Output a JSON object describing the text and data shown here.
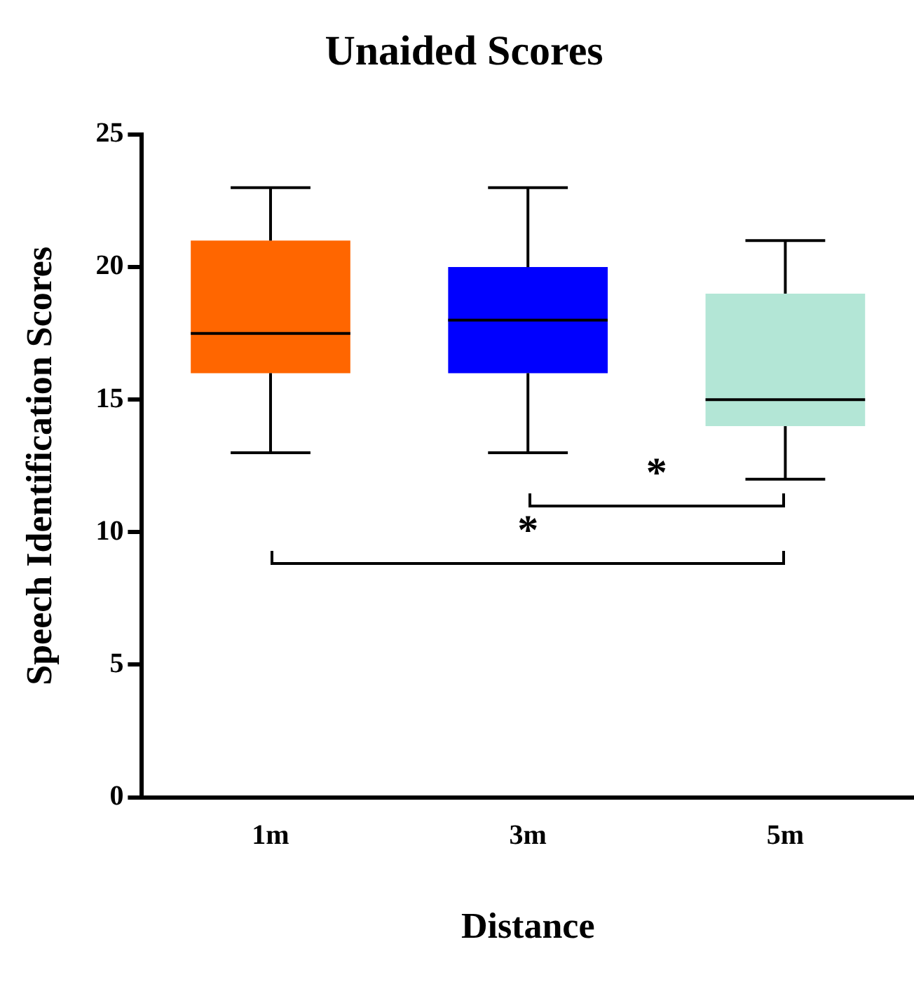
{
  "chart_data": {
    "type": "box",
    "title": "Unaided Scores",
    "xlabel": "Distance",
    "ylabel": "Speech Identification Scores",
    "categories": [
      "1m",
      "3m",
      "5m"
    ],
    "colors": [
      "#ff6600",
      "#0000ff",
      "#b3e6d6"
    ],
    "boxes": [
      {
        "low": 13,
        "q1": 16,
        "median": 17.5,
        "q3": 21,
        "high": 23
      },
      {
        "low": 13,
        "q1": 16,
        "median": 18,
        "q3": 20,
        "high": 23
      },
      {
        "low": 12,
        "q1": 14,
        "median": 15,
        "q3": 19,
        "high": 21
      }
    ],
    "ylim": [
      0,
      25
    ],
    "yticks": [
      0,
      5,
      10,
      15,
      20,
      25
    ],
    "grid": false,
    "legend": false,
    "annotations": [
      "*",
      "*"
    ]
  }
}
